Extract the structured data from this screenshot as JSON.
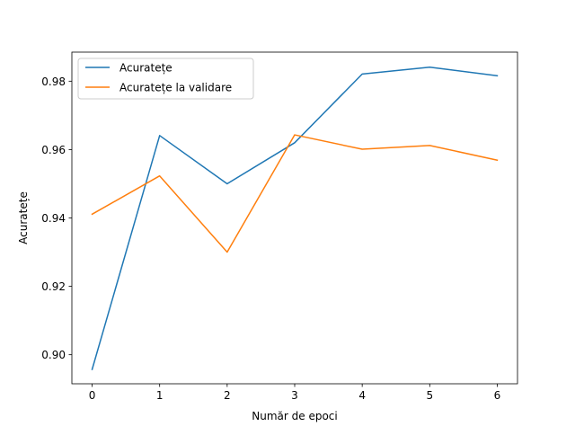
{
  "chart_data": {
    "type": "line",
    "title": "",
    "xlabel": "Număr de epoci",
    "ylabel": "Acuratețe",
    "x": [
      0,
      1,
      2,
      3,
      4,
      5,
      6
    ],
    "xlim": [
      -0.3,
      6.3
    ],
    "ylim": [
      0.8915,
      0.9885
    ],
    "xticks": [
      "0",
      "1",
      "2",
      "3",
      "4",
      "5",
      "6"
    ],
    "yticks": [
      0.9,
      0.92,
      0.94,
      0.96,
      0.98
    ],
    "ytick_labels": [
      "0.90",
      "0.92",
      "0.94",
      "0.96",
      "0.98"
    ],
    "grid": false,
    "legend_position": "upper-left",
    "series": [
      {
        "name": "Acuratețe",
        "color": "#1f77b4",
        "values": [
          0.8957,
          0.9641,
          0.95,
          0.962,
          0.9821,
          0.9841,
          0.9816
        ]
      },
      {
        "name": "Acuratețe la validare",
        "color": "#ff7f0e",
        "values": [
          0.9411,
          0.9523,
          0.93,
          0.9643,
          0.9601,
          0.9612,
          0.9569
        ]
      }
    ]
  }
}
